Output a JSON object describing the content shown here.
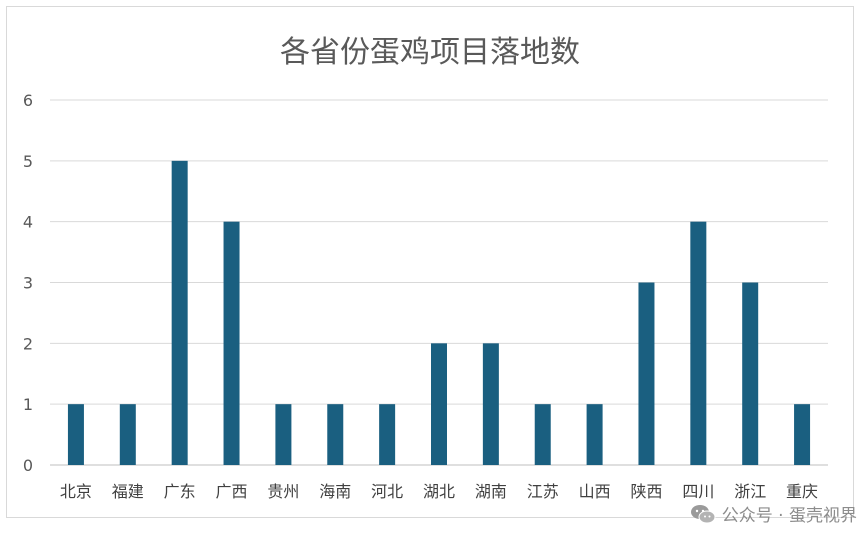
{
  "chart_data": {
    "type": "bar",
    "title": "各省份蛋鸡项目落地数",
    "categories": [
      "北京",
      "福建",
      "广东",
      "广西",
      "贵州",
      "海南",
      "河北",
      "湖北",
      "湖南",
      "江苏",
      "山西",
      "陕西",
      "四川",
      "浙江",
      "重庆"
    ],
    "values": [
      1,
      1,
      5,
      4,
      1,
      1,
      1,
      2,
      2,
      1,
      1,
      3,
      4,
      3,
      1
    ],
    "ylim": [
      0,
      6
    ],
    "yticks": [
      0,
      1,
      2,
      3,
      4,
      5,
      6
    ],
    "grid": true,
    "bar_color": "#1a5f80"
  },
  "watermark": {
    "text": "公众号 · 蛋壳视界",
    "icon": "wechat-icon"
  }
}
